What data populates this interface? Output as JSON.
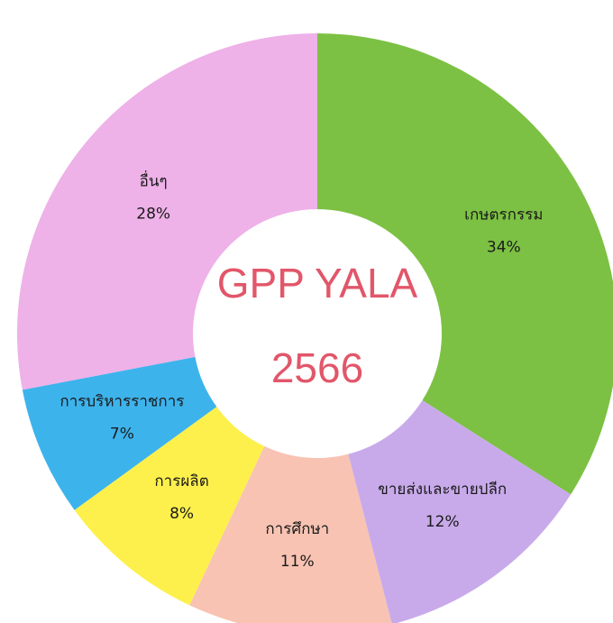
{
  "chart_data": {
    "type": "donut",
    "title": "GPP YALA",
    "subtitle": "2566",
    "categories": [
      "เกษตรกรรม",
      "ขายส่งและขายปลีก",
      "การศึกษา",
      "การผลิต",
      "การบริหารราชการ",
      "อื่นๆ"
    ],
    "values": [
      34,
      12,
      11,
      8,
      7,
      28
    ],
    "value_labels": [
      "34%",
      "12%",
      "11%",
      "8%",
      "7%",
      "28%"
    ],
    "colors": [
      "#7cc143",
      "#c8aaea",
      "#f8c3b3",
      "#fdf04c",
      "#3db3ec",
      "#eeb1e8"
    ]
  }
}
